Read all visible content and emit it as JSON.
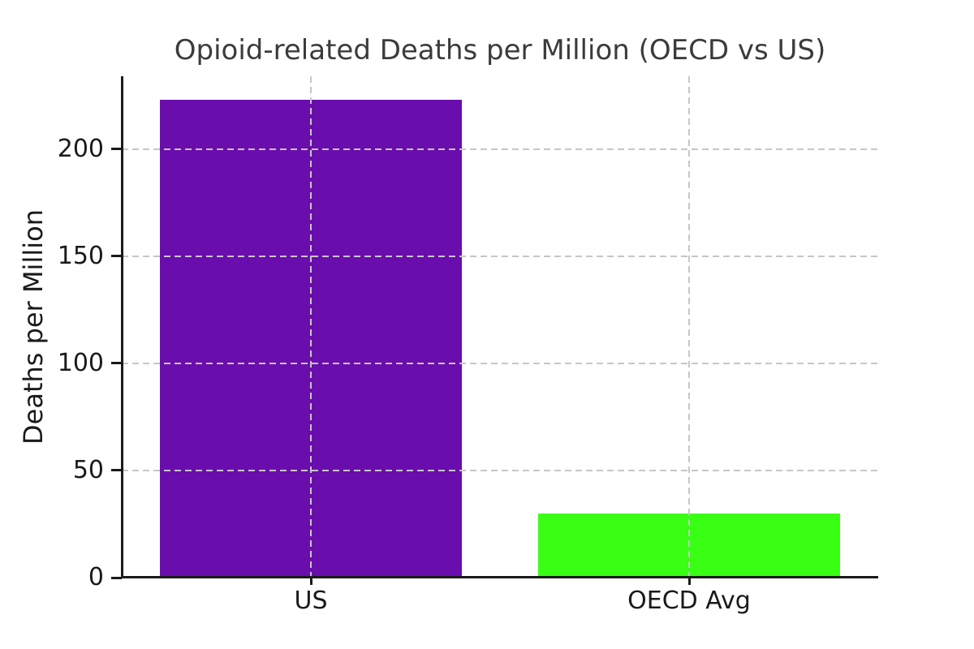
{
  "chart_data": {
    "type": "bar",
    "title": "Opioid-related Deaths per Million (OECD vs US)",
    "ylabel": "Deaths per Million",
    "xlabel": "",
    "categories": [
      "US",
      "OECD Avg"
    ],
    "values": [
      223,
      30
    ],
    "bar_colors": [
      "#6A0DAD",
      "#39FF14"
    ],
    "bar_width_fraction": 0.8,
    "ylim": [
      0,
      234
    ],
    "yticks": [
      0,
      50,
      100,
      150,
      200
    ],
    "grid": "dashed",
    "grid_color": "#c6c6c6",
    "axis_color": "#1a1a1a",
    "title_color": "#3b3b3b",
    "background_color": "#ffffff",
    "legend": "none"
  }
}
